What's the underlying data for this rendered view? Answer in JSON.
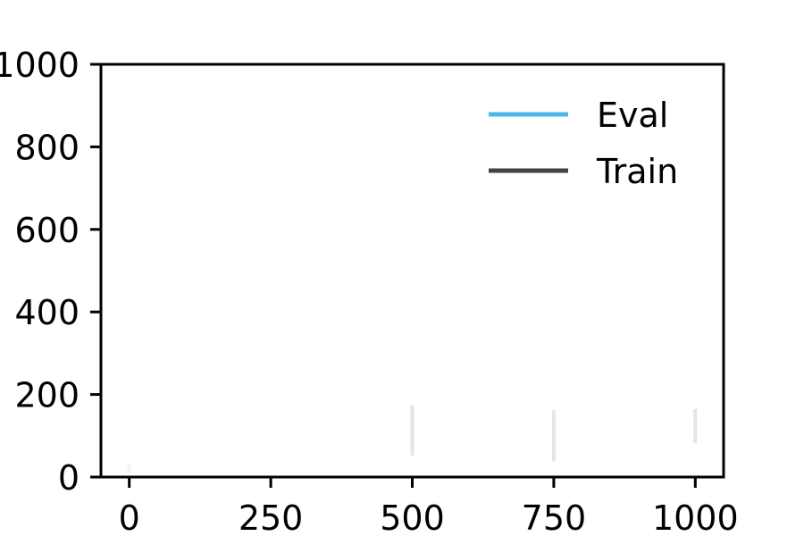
{
  "chart_data": {
    "type": "line",
    "title": "",
    "xlabel": "",
    "ylabel": "",
    "xlim": [
      -50,
      1050
    ],
    "ylim": [
      0,
      1000
    ],
    "xticks": [
      0,
      250,
      500,
      750,
      1000
    ],
    "xtick_labels": [
      "0",
      "250",
      "500",
      "750",
      "1000"
    ],
    "yticks": [
      0,
      200,
      400,
      600,
      800,
      1000
    ],
    "ytick_labels": [
      "0",
      "200",
      "400",
      "600",
      "800",
      "1000"
    ],
    "grid": false,
    "legend_position": "top-right",
    "series": [
      {
        "name": "Eval",
        "color": "#4db8ea",
        "points": [],
        "bands": [
          {
            "x": 0,
            "low": 12,
            "high": 30
          }
        ]
      },
      {
        "name": "Train",
        "color": "#444444",
        "points": [],
        "bands": [
          {
            "x": 500,
            "low": 52,
            "high": 175
          },
          {
            "x": 750,
            "low": 38,
            "high": 162
          },
          {
            "x": 1000,
            "low": 82,
            "high": 165
          }
        ]
      }
    ]
  }
}
